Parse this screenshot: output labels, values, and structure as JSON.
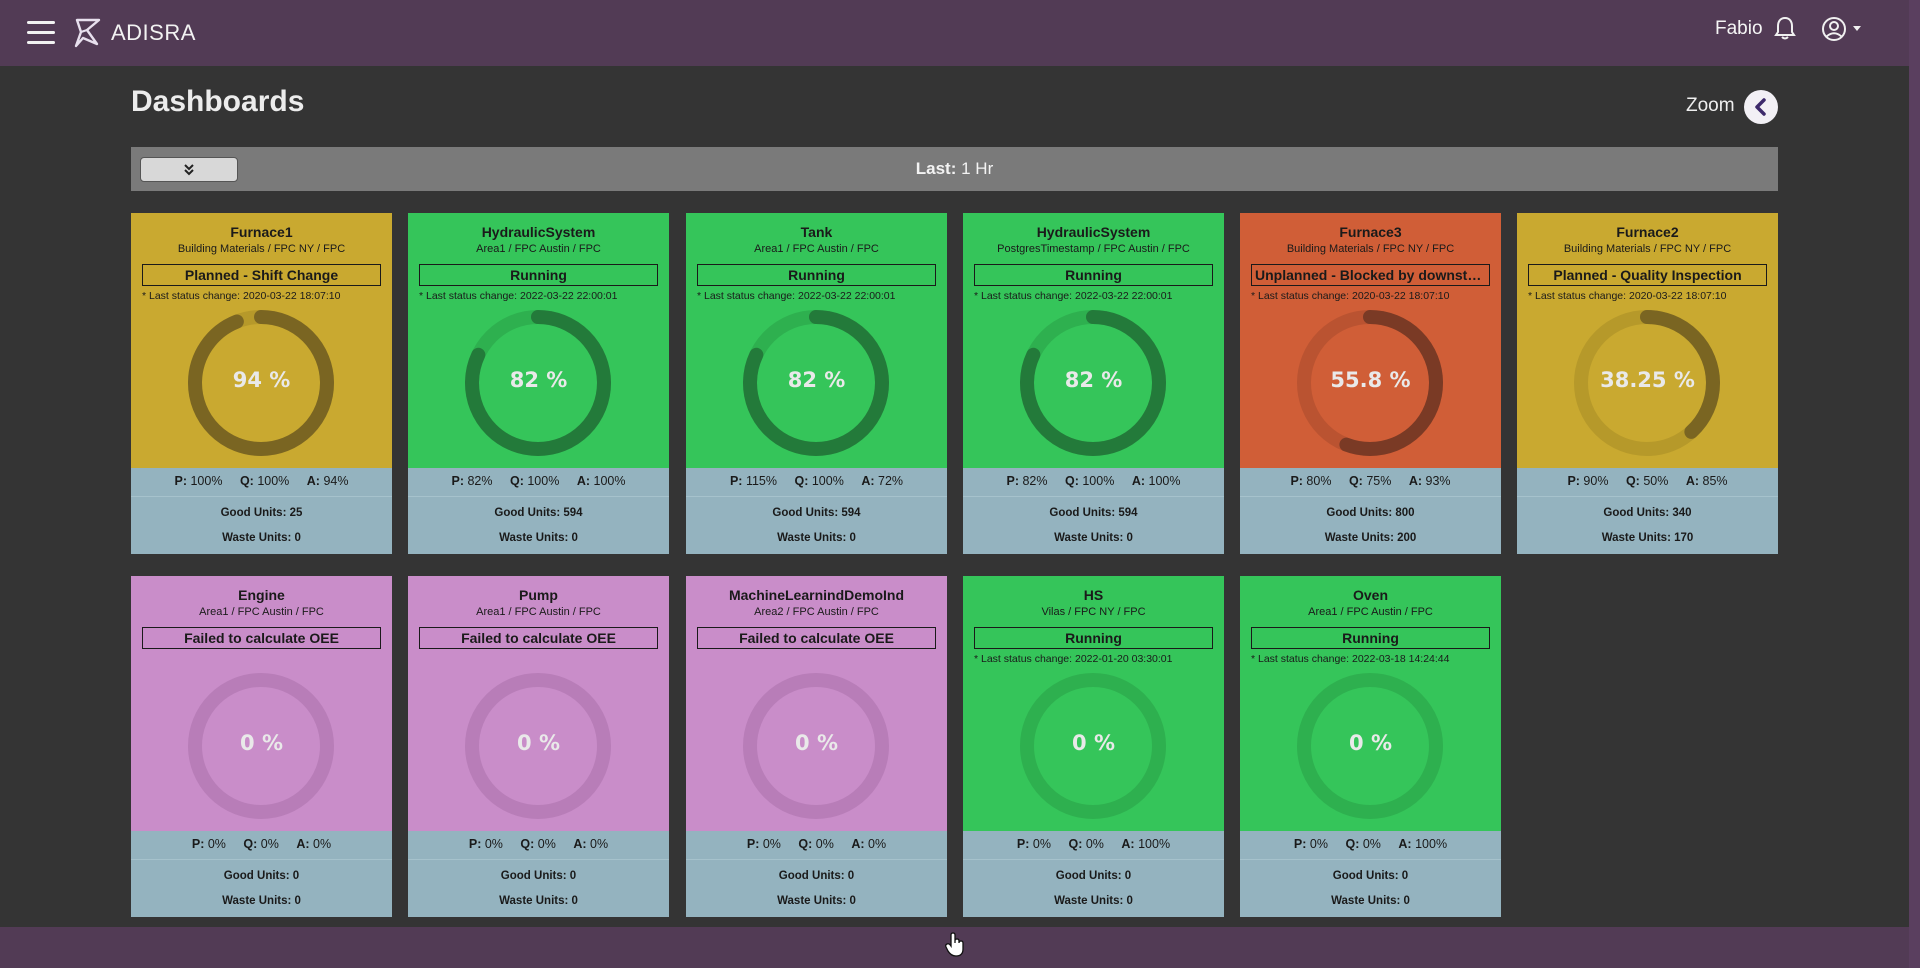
{
  "header": {
    "brand": "ADISRA",
    "user_name": "Fabio"
  },
  "page": {
    "title": "Dashboards",
    "zoom_label": "Zoom"
  },
  "filter": {
    "last_label": "Last:",
    "last_value": "1 Hr"
  },
  "colors": {
    "topbar": "#523b55",
    "background": "#343434",
    "planned": "#c9a930",
    "running": "#35c55a",
    "unplanned": "#d05e37",
    "failed": "#c98dc9",
    "stats_panel": "#94b3bf"
  },
  "cards": [
    {
      "name": "Furnace1",
      "path": "Building Materials / FPC NY / FPC",
      "status": "Planned - Shift Change",
      "last_change": "* Last status change: 2020-03-22 18:07:10",
      "oee_label": "94 %",
      "oee": 94,
      "p_label": "P:",
      "p": "100%",
      "q_label": "Q:",
      "q": "100%",
      "a_label": "A:",
      "a": "94%",
      "good_units": "Good Units: 25",
      "waste_units": "Waste Units: 0",
      "state": "planned"
    },
    {
      "name": "HydraulicSystem",
      "path": "Area1 / FPC Austin / FPC",
      "status": "Running",
      "last_change": "* Last status change: 2022-03-22 22:00:01",
      "oee_label": "82 %",
      "oee": 82,
      "p_label": "P:",
      "p": "82%",
      "q_label": "Q:",
      "q": "100%",
      "a_label": "A:",
      "a": "100%",
      "good_units": "Good Units: 594",
      "waste_units": "Waste Units: 0",
      "state": "running"
    },
    {
      "name": "Tank",
      "path": "Area1 / FPC Austin / FPC",
      "status": "Running",
      "last_change": "* Last status change: 2022-03-22 22:00:01",
      "oee_label": "82 %",
      "oee": 82,
      "p_label": "P:",
      "p": "115%",
      "q_label": "Q:",
      "q": "100%",
      "a_label": "A:",
      "a": "72%",
      "good_units": "Good Units: 594",
      "waste_units": "Waste Units: 0",
      "state": "running"
    },
    {
      "name": "HydraulicSystem",
      "path": "PostgresTimestamp / FPC Austin / FPC",
      "status": "Running",
      "last_change": "* Last status change: 2022-03-22 22:00:01",
      "oee_label": "82 %",
      "oee": 82,
      "p_label": "P:",
      "p": "82%",
      "q_label": "Q:",
      "q": "100%",
      "a_label": "A:",
      "a": "100%",
      "good_units": "Good Units: 594",
      "waste_units": "Waste Units: 0",
      "state": "running"
    },
    {
      "name": "Furnace3",
      "path": "Building Materials / FPC NY / FPC",
      "status": "Unplanned - Blocked by downstrea...",
      "last_change": "* Last status change: 2020-03-22 18:07:10",
      "oee_label": "55.8 %",
      "oee": 55.8,
      "p_label": "P:",
      "p": "80%",
      "q_label": "Q:",
      "q": "75%",
      "a_label": "A:",
      "a": "93%",
      "good_units": "Good Units: 800",
      "waste_units": "Waste Units: 200",
      "state": "unplanned"
    },
    {
      "name": "Furnace2",
      "path": "Building Materials / FPC NY / FPC",
      "status": "Planned - Quality Inspection",
      "last_change": "* Last status change: 2020-03-22 18:07:10",
      "oee_label": "38.25 %",
      "oee": 38.25,
      "p_label": "P:",
      "p": "90%",
      "q_label": "Q:",
      "q": "50%",
      "a_label": "A:",
      "a": "85%",
      "good_units": "Good Units: 340",
      "waste_units": "Waste Units: 170",
      "state": "planned"
    },
    {
      "name": "Engine",
      "path": "Area1 / FPC Austin / FPC",
      "status": "Failed to calculate OEE",
      "last_change": "",
      "oee_label": "0 %",
      "oee": 0,
      "p_label": "P:",
      "p": "0%",
      "q_label": "Q:",
      "q": "0%",
      "a_label": "A:",
      "a": "0%",
      "good_units": "Good Units: 0",
      "waste_units": "Waste Units: 0",
      "state": "failed"
    },
    {
      "name": "Pump",
      "path": "Area1 / FPC Austin / FPC",
      "status": "Failed to calculate OEE",
      "last_change": "",
      "oee_label": "0 %",
      "oee": 0,
      "p_label": "P:",
      "p": "0%",
      "q_label": "Q:",
      "q": "0%",
      "a_label": "A:",
      "a": "0%",
      "good_units": "Good Units: 0",
      "waste_units": "Waste Units: 0",
      "state": "failed"
    },
    {
      "name": "MachineLearnindDemoInd",
      "path": "Area2 / FPC Austin / FPC",
      "status": "Failed to calculate OEE",
      "last_change": "",
      "oee_label": "0 %",
      "oee": 0,
      "p_label": "P:",
      "p": "0%",
      "q_label": "Q:",
      "q": "0%",
      "a_label": "A:",
      "a": "0%",
      "good_units": "Good Units: 0",
      "waste_units": "Waste Units: 0",
      "state": "failed"
    },
    {
      "name": "HS",
      "path": "Vilas / FPC NY / FPC",
      "status": "Running",
      "last_change": "* Last status change: 2022-01-20 03:30:01",
      "oee_label": "0 %",
      "oee": 0,
      "p_label": "P:",
      "p": "0%",
      "q_label": "Q:",
      "q": "0%",
      "a_label": "A:",
      "a": "100%",
      "good_units": "Good Units: 0",
      "waste_units": "Waste Units: 0",
      "state": "running"
    },
    {
      "name": "Oven",
      "path": "Area1 / FPC Austin / FPC",
      "status": "Running",
      "last_change": "* Last status change: 2022-03-18 14:24:44",
      "oee_label": "0 %",
      "oee": 0,
      "p_label": "P:",
      "p": "0%",
      "q_label": "Q:",
      "q": "0%",
      "a_label": "A:",
      "a": "100%",
      "good_units": "Good Units: 0",
      "waste_units": "Waste Units: 0",
      "state": "running"
    }
  ]
}
